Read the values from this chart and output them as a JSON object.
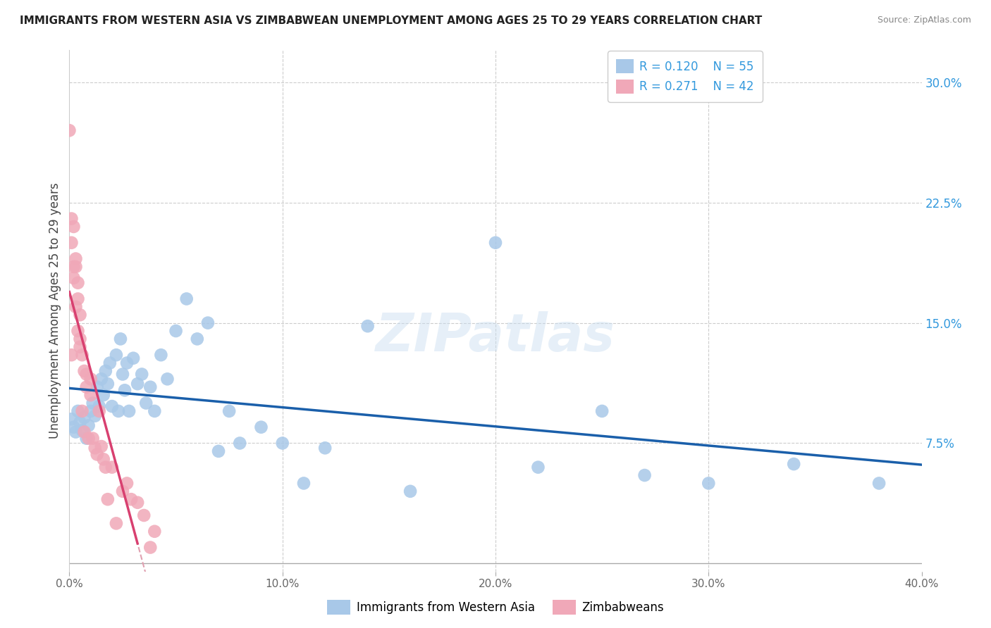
{
  "title": "IMMIGRANTS FROM WESTERN ASIA VS ZIMBABWEAN UNEMPLOYMENT AMONG AGES 25 TO 29 YEARS CORRELATION CHART",
  "source": "Source: ZipAtlas.com",
  "ylabel": "Unemployment Among Ages 25 to 29 years",
  "blue_R": "0.120",
  "blue_N": "55",
  "pink_R": "0.271",
  "pink_N": "42",
  "blue_color": "#a8c8e8",
  "pink_color": "#f0a8b8",
  "blue_line_color": "#1a5faa",
  "pink_line_color": "#d84070",
  "pink_dashed_color": "#e0a0b0",
  "axis_label_color": "#3399dd",
  "title_color": "#222222",
  "watermark": "ZIPatlas",
  "blue_scatter_x": [
    0.001,
    0.002,
    0.003,
    0.004,
    0.005,
    0.006,
    0.007,
    0.008,
    0.009,
    0.01,
    0.011,
    0.012,
    0.013,
    0.014,
    0.015,
    0.016,
    0.017,
    0.018,
    0.019,
    0.02,
    0.022,
    0.023,
    0.024,
    0.025,
    0.026,
    0.027,
    0.028,
    0.03,
    0.032,
    0.034,
    0.036,
    0.038,
    0.04,
    0.043,
    0.046,
    0.05,
    0.055,
    0.06,
    0.065,
    0.07,
    0.075,
    0.08,
    0.09,
    0.1,
    0.11,
    0.12,
    0.14,
    0.16,
    0.2,
    0.22,
    0.25,
    0.27,
    0.3,
    0.34,
    0.38
  ],
  "blue_scatter_y": [
    0.09,
    0.085,
    0.082,
    0.095,
    0.088,
    0.083,
    0.091,
    0.078,
    0.086,
    0.095,
    0.1,
    0.092,
    0.11,
    0.098,
    0.115,
    0.105,
    0.12,
    0.112,
    0.125,
    0.098,
    0.13,
    0.095,
    0.14,
    0.118,
    0.108,
    0.125,
    0.095,
    0.128,
    0.112,
    0.118,
    0.1,
    0.11,
    0.095,
    0.13,
    0.115,
    0.145,
    0.165,
    0.14,
    0.15,
    0.07,
    0.095,
    0.075,
    0.085,
    0.075,
    0.05,
    0.072,
    0.148,
    0.045,
    0.2,
    0.06,
    0.095,
    0.055,
    0.05,
    0.062,
    0.05
  ],
  "pink_scatter_x": [
    0.0,
    0.001,
    0.001,
    0.001,
    0.002,
    0.002,
    0.002,
    0.003,
    0.003,
    0.003,
    0.004,
    0.004,
    0.004,
    0.005,
    0.005,
    0.005,
    0.006,
    0.006,
    0.007,
    0.007,
    0.008,
    0.008,
    0.009,
    0.01,
    0.01,
    0.011,
    0.012,
    0.013,
    0.014,
    0.015,
    0.016,
    0.017,
    0.018,
    0.02,
    0.022,
    0.025,
    0.027,
    0.029,
    0.032,
    0.035,
    0.038,
    0.04
  ],
  "pink_scatter_y": [
    0.27,
    0.215,
    0.2,
    0.13,
    0.21,
    0.185,
    0.178,
    0.19,
    0.185,
    0.16,
    0.175,
    0.165,
    0.145,
    0.155,
    0.14,
    0.135,
    0.13,
    0.095,
    0.12,
    0.082,
    0.118,
    0.11,
    0.078,
    0.115,
    0.105,
    0.078,
    0.072,
    0.068,
    0.095,
    0.073,
    0.065,
    0.06,
    0.04,
    0.06,
    0.025,
    0.045,
    0.05,
    0.04,
    0.038,
    0.03,
    0.01,
    0.02
  ],
  "xlim": [
    0.0,
    0.4
  ],
  "ylim": [
    -0.005,
    0.32
  ],
  "x_ticks": [
    0.0,
    0.1,
    0.2,
    0.3,
    0.4
  ],
  "x_tick_labels": [
    "0.0%",
    "10.0%",
    "20.0%",
    "30.0%",
    "40.0%"
  ],
  "y_ticks_right": [
    0.075,
    0.15,
    0.225,
    0.3
  ],
  "y_tick_labels_right": [
    "7.5%",
    "15.0%",
    "22.5%",
    "30.0%"
  ],
  "legend_labels": [
    "Immigrants from Western Asia",
    "Zimbabweans"
  ],
  "bg_color": "#ffffff",
  "grid_color": "#cccccc"
}
